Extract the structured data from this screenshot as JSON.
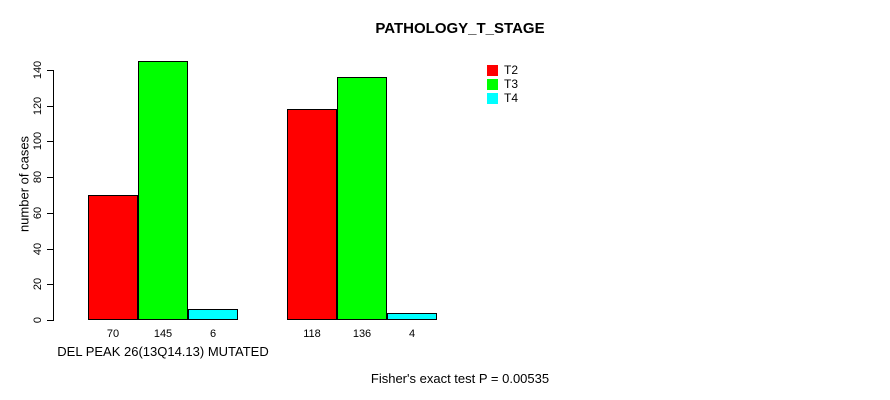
{
  "title": "PATHOLOGY_T_STAGE",
  "chart_data": {
    "type": "bar",
    "title": "PATHOLOGY_T_STAGE",
    "xlabel": "",
    "ylabel": "number of cases",
    "ylim": [
      0,
      140
    ],
    "yticks": [
      0,
      20,
      40,
      60,
      80,
      100,
      120,
      140
    ],
    "grid": false,
    "background_color": "#FFFFFF",
    "axis_color": "#000000",
    "group_labels": [
      "DEL PEAK 26(13Q14.13) MUTATED",
      ""
    ],
    "series": [
      {
        "name": "T2",
        "color": "#FF0000",
        "values": [
          70,
          118
        ]
      },
      {
        "name": "T3",
        "color": "#00FF00",
        "values": [
          145,
          136
        ]
      },
      {
        "name": "T4",
        "color": "#00FFFF",
        "values": [
          6,
          4
        ]
      }
    ],
    "value_labels_shown_under_bars": true,
    "legend": {
      "position": "top-right",
      "entries": [
        "T2",
        "T3",
        "T4"
      ]
    },
    "annotation": "Fisher's exact test P = 0.00535"
  }
}
